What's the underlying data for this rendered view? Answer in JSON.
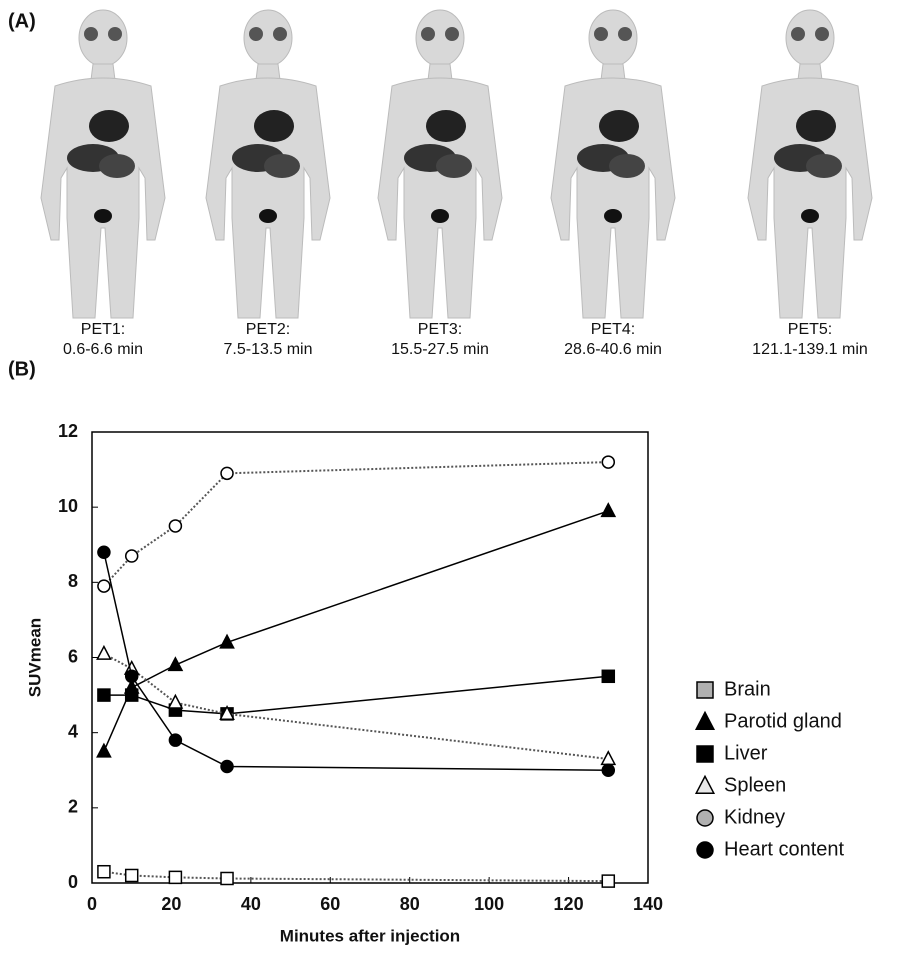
{
  "panel_a": {
    "label": "(A)",
    "scans": [
      {
        "name": "PET1:",
        "time": "0.6-6.6 min"
      },
      {
        "name": "PET2:",
        "time": "7.5-13.5 min"
      },
      {
        "name": "PET3:",
        "time": "15.5-27.5 min"
      },
      {
        "name": "PET4:",
        "time": "28.6-40.6 min"
      },
      {
        "name": "PET5:",
        "time": "121.1-139.1 min"
      }
    ]
  },
  "chart_data": {
    "type": "line",
    "panel_label": "(B)",
    "x_label": "Minutes after injection",
    "y_label": "SUVmean",
    "xlim": [
      0,
      140
    ],
    "xticks": [
      0,
      20,
      40,
      60,
      80,
      100,
      120,
      140
    ],
    "ylim": [
      0,
      12
    ],
    "yticks": [
      0,
      2,
      4,
      6,
      8,
      10,
      12
    ],
    "series": [
      {
        "name": "Brain",
        "marker": "square",
        "color": "#b0b0b0",
        "dashed": true,
        "x": [
          3,
          10,
          21,
          34,
          130
        ],
        "values": [
          0.3,
          0.2,
          0.15,
          0.12,
          0.05
        ]
      },
      {
        "name": "Parotid gland",
        "marker": "triangle",
        "color": "#000000",
        "dashed": false,
        "x": [
          3,
          10,
          21,
          34,
          130
        ],
        "values": [
          3.5,
          5.2,
          5.8,
          6.4,
          9.9
        ]
      },
      {
        "name": "Liver",
        "marker": "square",
        "color": "#000000",
        "dashed": false,
        "x": [
          3,
          10,
          21,
          34,
          130
        ],
        "values": [
          5.0,
          5.0,
          4.6,
          4.5,
          5.5
        ]
      },
      {
        "name": "Spleen",
        "marker": "triangle",
        "color": "#e8e8e8",
        "dashed": true,
        "x": [
          3,
          10,
          21,
          34,
          130
        ],
        "values": [
          6.1,
          5.7,
          4.8,
          4.5,
          3.3
        ]
      },
      {
        "name": "Kidney",
        "marker": "circle",
        "color": "#b0b0b0",
        "dashed": true,
        "x": [
          3,
          10,
          21,
          34,
          130
        ],
        "values": [
          7.9,
          8.7,
          9.5,
          10.9,
          11.2
        ]
      },
      {
        "name": "Heart content",
        "marker": "circle",
        "color": "#000000",
        "dashed": false,
        "x": [
          3,
          10,
          21,
          34,
          130
        ],
        "values": [
          8.8,
          5.5,
          3.8,
          3.1,
          3.0
        ]
      }
    ]
  }
}
